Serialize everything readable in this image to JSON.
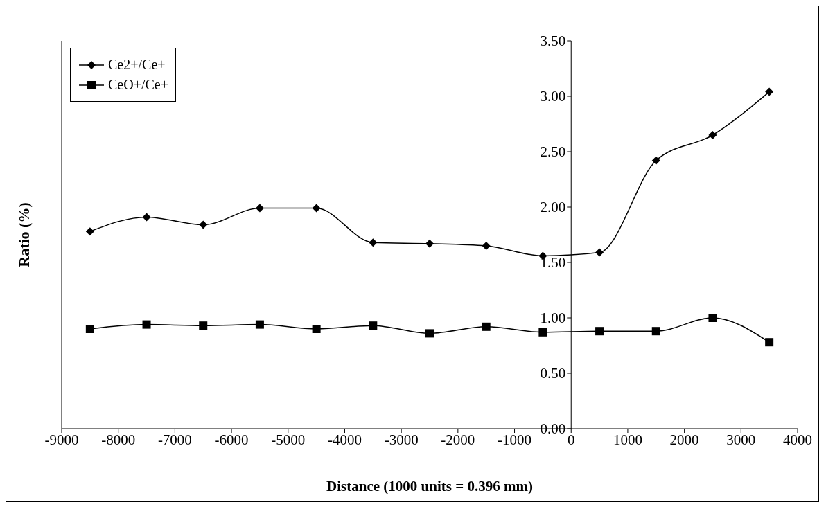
{
  "chart_data": {
    "type": "line",
    "xlabel": "Distance (1000 units = 0.396 mm)",
    "ylabel": "Ratio (%)",
    "x": [
      -8500,
      -7500,
      -6500,
      -5500,
      -4500,
      -3500,
      -2500,
      -1500,
      -500,
      500,
      1500,
      2500,
      3500
    ],
    "series": [
      {
        "name": "Ce2+/Ce+",
        "color": "#000000",
        "marker": "diamond",
        "values": [
          1.78,
          1.91,
          1.84,
          1.99,
          1.99,
          1.68,
          1.67,
          1.65,
          1.56,
          1.59,
          2.42,
          2.65,
          3.04
        ]
      },
      {
        "name": "CeO+/Ce+",
        "color": "#000000",
        "marker": "square",
        "values": [
          0.9,
          0.94,
          0.93,
          0.94,
          0.9,
          0.93,
          0.86,
          0.92,
          0.87,
          0.88,
          0.88,
          1.0,
          0.78
        ]
      }
    ],
    "xlim": [
      -9000,
      4000
    ],
    "xticks": [
      -9000,
      -8000,
      -7000,
      -6000,
      -5000,
      -4000,
      -3000,
      -2000,
      -1000,
      0,
      1000,
      2000,
      3000,
      4000
    ],
    "ylim": [
      0,
      3.5
    ],
    "yticks": [
      {
        "value": 0,
        "label": "0.00"
      },
      {
        "value": 0.5,
        "label": "0.50"
      },
      {
        "value": 1,
        "label": "1.00"
      },
      {
        "value": 1.5,
        "label": "1.50"
      },
      {
        "value": 2,
        "label": "2.00"
      },
      {
        "value": 2.5,
        "label": "2.50"
      },
      {
        "value": 3,
        "label": "3.00"
      },
      {
        "value": 3.5,
        "label": "3.50"
      }
    ],
    "grid": false,
    "legend": "top left",
    "line_style": "solid"
  }
}
